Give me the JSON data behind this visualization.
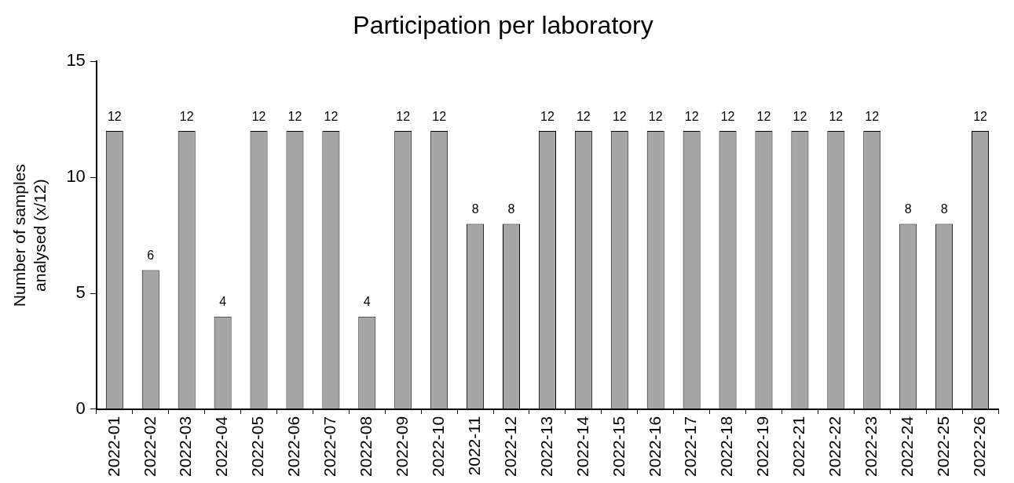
{
  "chart_data": {
    "type": "bar",
    "title": "Participation per laboratory",
    "ylabel": "Number of samples\nanalysed (x/12)",
    "categories": [
      "2022-01",
      "2022-02",
      "2022-03",
      "2022-04",
      "2022-05",
      "2022-06",
      "2022-07",
      "2022-08",
      "2022-09",
      "2022-10",
      "2022-11",
      "2022-12",
      "2022-13",
      "2022-14",
      "2022-15",
      "2022-16",
      "2022-17",
      "2022-18",
      "2022-19",
      "2022-21",
      "2022-22",
      "2022-23",
      "2022-24",
      "2022-25",
      "2022-26"
    ],
    "values": [
      12,
      6,
      12,
      4,
      12,
      12,
      12,
      4,
      12,
      12,
      8,
      8,
      12,
      12,
      12,
      12,
      12,
      12,
      12,
      12,
      12,
      12,
      8,
      8,
      12
    ],
    "color": "#a6a6a6",
    "ylim": [
      0,
      15
    ],
    "yticks": [
      0,
      5,
      10,
      15
    ],
    "grid": false,
    "legend": false,
    "data_labels": true
  }
}
